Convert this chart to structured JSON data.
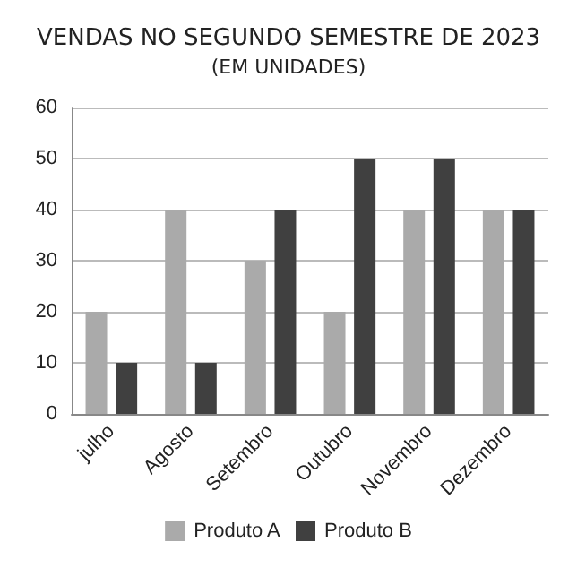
{
  "chart_data": {
    "type": "bar",
    "title": "VENDAS NO SEGUNDO SEMESTRE DE 2023",
    "subtitle": "(EM UNIDADES)",
    "categories": [
      "julho",
      "Agosto",
      "Setembro",
      "Outubro",
      "Novembro",
      "Dezembro"
    ],
    "series": [
      {
        "name": "Produto A",
        "color": "#aaaaaa",
        "values": [
          20,
          40,
          30,
          20,
          40,
          40
        ]
      },
      {
        "name": "Produto B",
        "color": "#404040",
        "values": [
          10,
          10,
          40,
          50,
          50,
          40
        ]
      }
    ],
    "ylim": [
      0,
      60
    ],
    "yticks": [
      0,
      10,
      20,
      30,
      40,
      50,
      60
    ],
    "grid": "y",
    "legend": "bottom"
  }
}
